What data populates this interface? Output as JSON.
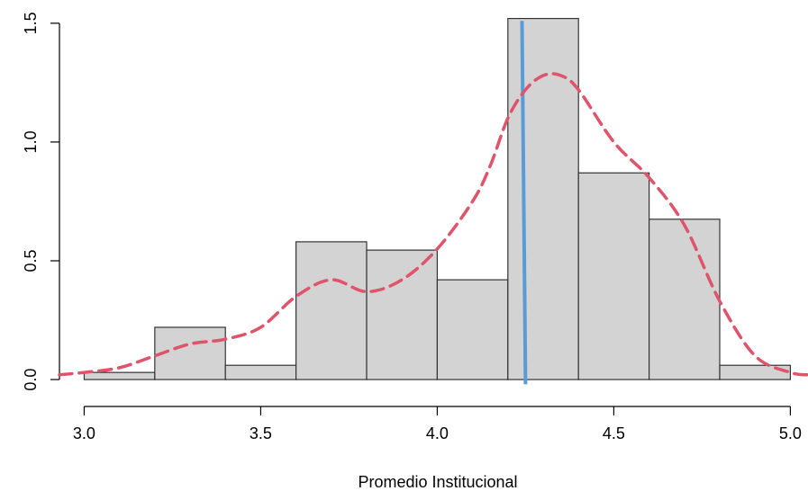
{
  "chart_data": {
    "type": "histogram",
    "xlabel": "Promedio Institucional",
    "ylabel": "",
    "xlim": [
      2.93,
      5.05
    ],
    "ylim": [
      -0.03,
      1.56
    ],
    "x_ticks": [
      3.0,
      3.5,
      4.0,
      4.5,
      5.0
    ],
    "x_tick_labels": [
      "3.0",
      "3.5",
      "4.0",
      "4.5",
      "5.0"
    ],
    "y_ticks": [
      0.0,
      0.5,
      1.0,
      1.5
    ],
    "y_tick_labels": [
      "0.0",
      "0.5",
      "1.0",
      "1.5"
    ],
    "bins": [
      {
        "start": 3.0,
        "end": 3.2,
        "density": 0.03
      },
      {
        "start": 3.2,
        "end": 3.4,
        "density": 0.22
      },
      {
        "start": 3.4,
        "end": 3.6,
        "density": 0.06
      },
      {
        "start": 3.6,
        "end": 3.8,
        "density": 0.58
      },
      {
        "start": 3.8,
        "end": 4.0,
        "density": 0.545
      },
      {
        "start": 4.0,
        "end": 4.2,
        "density": 0.42
      },
      {
        "start": 4.2,
        "end": 4.4,
        "density": 1.52
      },
      {
        "start": 4.4,
        "end": 4.6,
        "density": 0.87
      },
      {
        "start": 4.6,
        "end": 4.8,
        "density": 0.675
      },
      {
        "start": 4.8,
        "end": 5.0,
        "density": 0.06
      }
    ],
    "density_curve": {
      "x": [
        2.93,
        3.0,
        3.1,
        3.2,
        3.3,
        3.4,
        3.5,
        3.6,
        3.7,
        3.8,
        3.9,
        4.0,
        4.1,
        4.15,
        4.2,
        4.25,
        4.3,
        4.35,
        4.4,
        4.5,
        4.6,
        4.7,
        4.8,
        4.9,
        5.0,
        5.05
      ],
      "y": [
        0.02,
        0.03,
        0.05,
        0.1,
        0.15,
        0.17,
        0.22,
        0.35,
        0.42,
        0.37,
        0.42,
        0.55,
        0.75,
        0.9,
        1.1,
        1.22,
        1.28,
        1.28,
        1.22,
        1.0,
        0.85,
        0.65,
        0.33,
        0.1,
        0.03,
        0.02
      ],
      "color": "#DF536B"
    },
    "vertical_line": {
      "x_top": 4.24,
      "x_bottom": 4.25,
      "y_top": 1.51,
      "y_bottom": -0.02,
      "color": "#5B9BD5"
    },
    "bar_fill": "#D3D3D3",
    "bar_stroke": "#333333",
    "grid": false,
    "legend": "none"
  }
}
